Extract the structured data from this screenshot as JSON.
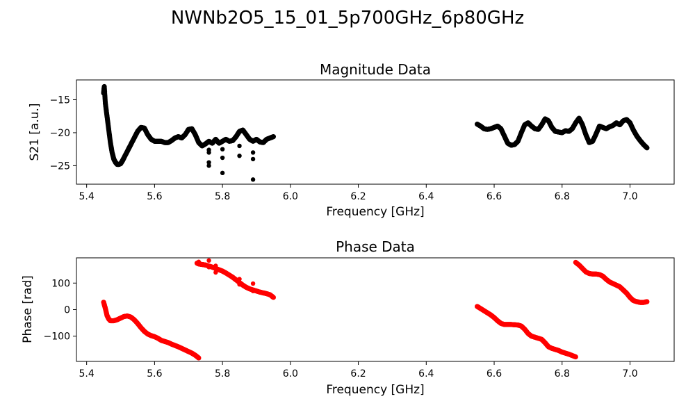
{
  "figure": {
    "suptitle": "NWNb2O5_15_01_5p700GHz_6p80GHz"
  },
  "chart_data": [
    {
      "type": "scatter",
      "title": "Magnitude Data",
      "xlabel": "Frequency [GHz]",
      "ylabel": "S21 [a.u.]",
      "xlim": [
        5.37,
        7.13
      ],
      "ylim": [
        -27.8,
        -12.0
      ],
      "xticks": [
        5.4,
        5.6,
        5.8,
        6.0,
        6.2,
        6.4,
        6.6,
        6.8,
        7.0
      ],
      "xtick_labels": [
        "5.4",
        "5.6",
        "5.8",
        "6.0",
        "6.2",
        "6.4",
        "6.6",
        "6.8",
        "7.0"
      ],
      "yticks": [
        -25,
        -20,
        -15
      ],
      "ytick_labels": [
        "−25",
        "−20",
        "−15"
      ],
      "grid": false,
      "color": "#000000",
      "segments": [
        {
          "x": [
            5.45,
            5.452,
            5.455,
            5.46,
            5.465,
            5.47,
            5.475,
            5.48,
            5.485,
            5.49,
            5.495,
            5.5,
            5.505,
            5.51,
            5.52,
            5.53,
            5.54,
            5.55,
            5.56,
            5.57,
            5.58,
            5.59,
            5.6,
            5.61,
            5.62,
            5.63,
            5.64,
            5.65,
            5.66,
            5.67,
            5.68,
            5.69,
            5.7,
            5.71,
            5.72,
            5.73,
            5.74,
            5.75,
            5.76,
            5.77,
            5.78,
            5.79,
            5.8,
            5.81,
            5.82,
            5.83,
            5.84,
            5.85,
            5.86,
            5.87,
            5.88,
            5.89,
            5.9,
            5.91,
            5.92,
            5.93,
            5.94,
            5.95
          ],
          "y": [
            -14.0,
            -13.0,
            -15.5,
            -17.5,
            -19.5,
            -21.5,
            -23.0,
            -24.0,
            -24.5,
            -24.8,
            -24.8,
            -24.7,
            -24.3,
            -23.8,
            -22.8,
            -21.8,
            -20.8,
            -19.8,
            -19.2,
            -19.3,
            -20.3,
            -21.0,
            -21.3,
            -21.3,
            -21.3,
            -21.5,
            -21.5,
            -21.2,
            -20.8,
            -20.6,
            -20.8,
            -20.3,
            -19.5,
            -19.4,
            -20.3,
            -21.5,
            -22.0,
            -21.7,
            -21.3,
            -21.6,
            -21.0,
            -21.6,
            -21.3,
            -21.0,
            -21.3,
            -21.2,
            -20.6,
            -19.8,
            -19.6,
            -20.3,
            -21.0,
            -21.3,
            -21.0,
            -21.4,
            -21.5,
            -21.0,
            -20.8,
            -20.6
          ]
        },
        {
          "x": [
            6.55,
            6.56,
            6.57,
            6.58,
            6.59,
            6.6,
            6.61,
            6.62,
            6.63,
            6.64,
            6.65,
            6.66,
            6.67,
            6.68,
            6.69,
            6.7,
            6.71,
            6.72,
            6.73,
            6.74,
            6.75,
            6.76,
            6.77,
            6.78,
            6.79,
            6.8,
            6.81,
            6.82,
            6.83,
            6.84,
            6.85,
            6.86,
            6.87,
            6.88,
            6.89,
            6.9,
            6.91,
            6.92,
            6.93,
            6.94,
            6.95,
            6.96,
            6.97,
            6.98,
            6.99,
            7.0,
            7.01,
            7.02,
            7.03,
            7.04,
            7.05
          ],
          "y": [
            -18.7,
            -19.0,
            -19.4,
            -19.5,
            -19.4,
            -19.2,
            -19.0,
            -19.4,
            -20.5,
            -21.6,
            -21.9,
            -21.8,
            -21.3,
            -20.0,
            -18.8,
            -18.5,
            -19.0,
            -19.4,
            -19.5,
            -18.8,
            -17.9,
            -18.2,
            -19.2,
            -19.8,
            -19.9,
            -20.0,
            -19.7,
            -19.8,
            -19.4,
            -18.5,
            -17.8,
            -18.8,
            -20.3,
            -21.5,
            -21.3,
            -20.2,
            -19.0,
            -19.2,
            -19.4,
            -19.1,
            -18.9,
            -18.5,
            -18.8,
            -18.2,
            -18.0,
            -18.5,
            -19.6,
            -20.5,
            -21.2,
            -21.8,
            -22.3
          ]
        }
      ],
      "outliers": {
        "x": [
          5.76,
          5.76,
          5.76,
          5.76,
          5.8,
          5.8,
          5.8,
          5.85,
          5.85,
          5.89,
          5.89,
          5.89
        ],
        "y": [
          -23.0,
          -24.5,
          -25.0,
          -22.6,
          -22.5,
          -23.8,
          -26.1,
          -23.5,
          -22.0,
          -27.1,
          -24.0,
          -23.0
        ]
      }
    },
    {
      "type": "scatter",
      "title": "Phase Data",
      "xlabel": "Frequency [GHz]",
      "ylabel": "Phase [rad]",
      "xlim": [
        5.37,
        7.13
      ],
      "ylim": [
        -195,
        195
      ],
      "xticks": [
        5.4,
        5.6,
        5.8,
        6.0,
        6.2,
        6.4,
        6.6,
        6.8,
        7.0
      ],
      "xtick_labels": [
        "5.4",
        "5.6",
        "5.8",
        "6.0",
        "6.2",
        "6.4",
        "6.6",
        "6.8",
        "7.0"
      ],
      "yticks": [
        -100,
        0,
        100
      ],
      "ytick_labels": [
        "−100",
        "0",
        "100"
      ],
      "grid": false,
      "color": "#ff0000",
      "segments": [
        {
          "x": [
            5.45,
            5.455,
            5.46,
            5.465,
            5.47,
            5.48,
            5.49,
            5.5,
            5.51,
            5.52,
            5.53,
            5.54,
            5.55,
            5.56,
            5.57,
            5.58,
            5.59,
            5.6,
            5.61,
            5.62,
            5.63,
            5.64,
            5.65,
            5.66,
            5.67,
            5.68,
            5.69,
            5.7,
            5.71,
            5.72,
            5.73
          ],
          "y": [
            28,
            5,
            -22,
            -35,
            -42,
            -42,
            -38,
            -32,
            -26,
            -24,
            -28,
            -38,
            -52,
            -68,
            -82,
            -92,
            -98,
            -102,
            -108,
            -116,
            -120,
            -124,
            -130,
            -135,
            -140,
            -146,
            -152,
            -158,
            -164,
            -172,
            -182
          ]
        },
        {
          "x": [
            5.725,
            5.73,
            5.74,
            5.75,
            5.76,
            5.77,
            5.78,
            5.79,
            5.8,
            5.81,
            5.82,
            5.83,
            5.84,
            5.85,
            5.86,
            5.87,
            5.88,
            5.89,
            5.9,
            5.91,
            5.92,
            5.93,
            5.94,
            5.95
          ],
          "y": [
            175,
            172,
            170,
            168,
            164,
            160,
            155,
            150,
            145,
            138,
            130,
            122,
            112,
            102,
            92,
            84,
            78,
            74,
            70,
            66,
            63,
            60,
            56,
            46
          ]
        },
        {
          "x": [
            6.55,
            6.56,
            6.57,
            6.58,
            6.59,
            6.6,
            6.61,
            6.62,
            6.63,
            6.64,
            6.65,
            6.66,
            6.67,
            6.68,
            6.69,
            6.7,
            6.71,
            6.72,
            6.73,
            6.74,
            6.75,
            6.76,
            6.77,
            6.78,
            6.79,
            6.8,
            6.81,
            6.82,
            6.83,
            6.84
          ],
          "y": [
            12,
            4,
            -4,
            -12,
            -20,
            -30,
            -42,
            -52,
            -56,
            -56,
            -56,
            -57,
            -58,
            -62,
            -74,
            -90,
            -100,
            -104,
            -108,
            -112,
            -125,
            -140,
            -146,
            -150,
            -154,
            -160,
            -164,
            -168,
            -173,
            -178
          ]
        },
        {
          "x": [
            6.84,
            6.85,
            6.86,
            6.87,
            6.88,
            6.89,
            6.9,
            6.91,
            6.92,
            6.93,
            6.94,
            6.95,
            6.96,
            6.97,
            6.98,
            6.99,
            7.0,
            7.01,
            7.02,
            7.03,
            7.04,
            7.05
          ],
          "y": [
            178,
            168,
            155,
            142,
            136,
            134,
            134,
            132,
            126,
            114,
            104,
            98,
            92,
            86,
            74,
            62,
            46,
            34,
            30,
            27,
            27,
            30
          ]
        }
      ],
      "outliers": {
        "x": [
          5.73,
          5.76,
          5.76,
          5.78,
          5.78,
          5.85,
          5.85,
          5.89,
          5.89
        ],
        "y": [
          180,
          185,
          160,
          165,
          140,
          115,
          95,
          98,
          70
        ]
      }
    }
  ]
}
